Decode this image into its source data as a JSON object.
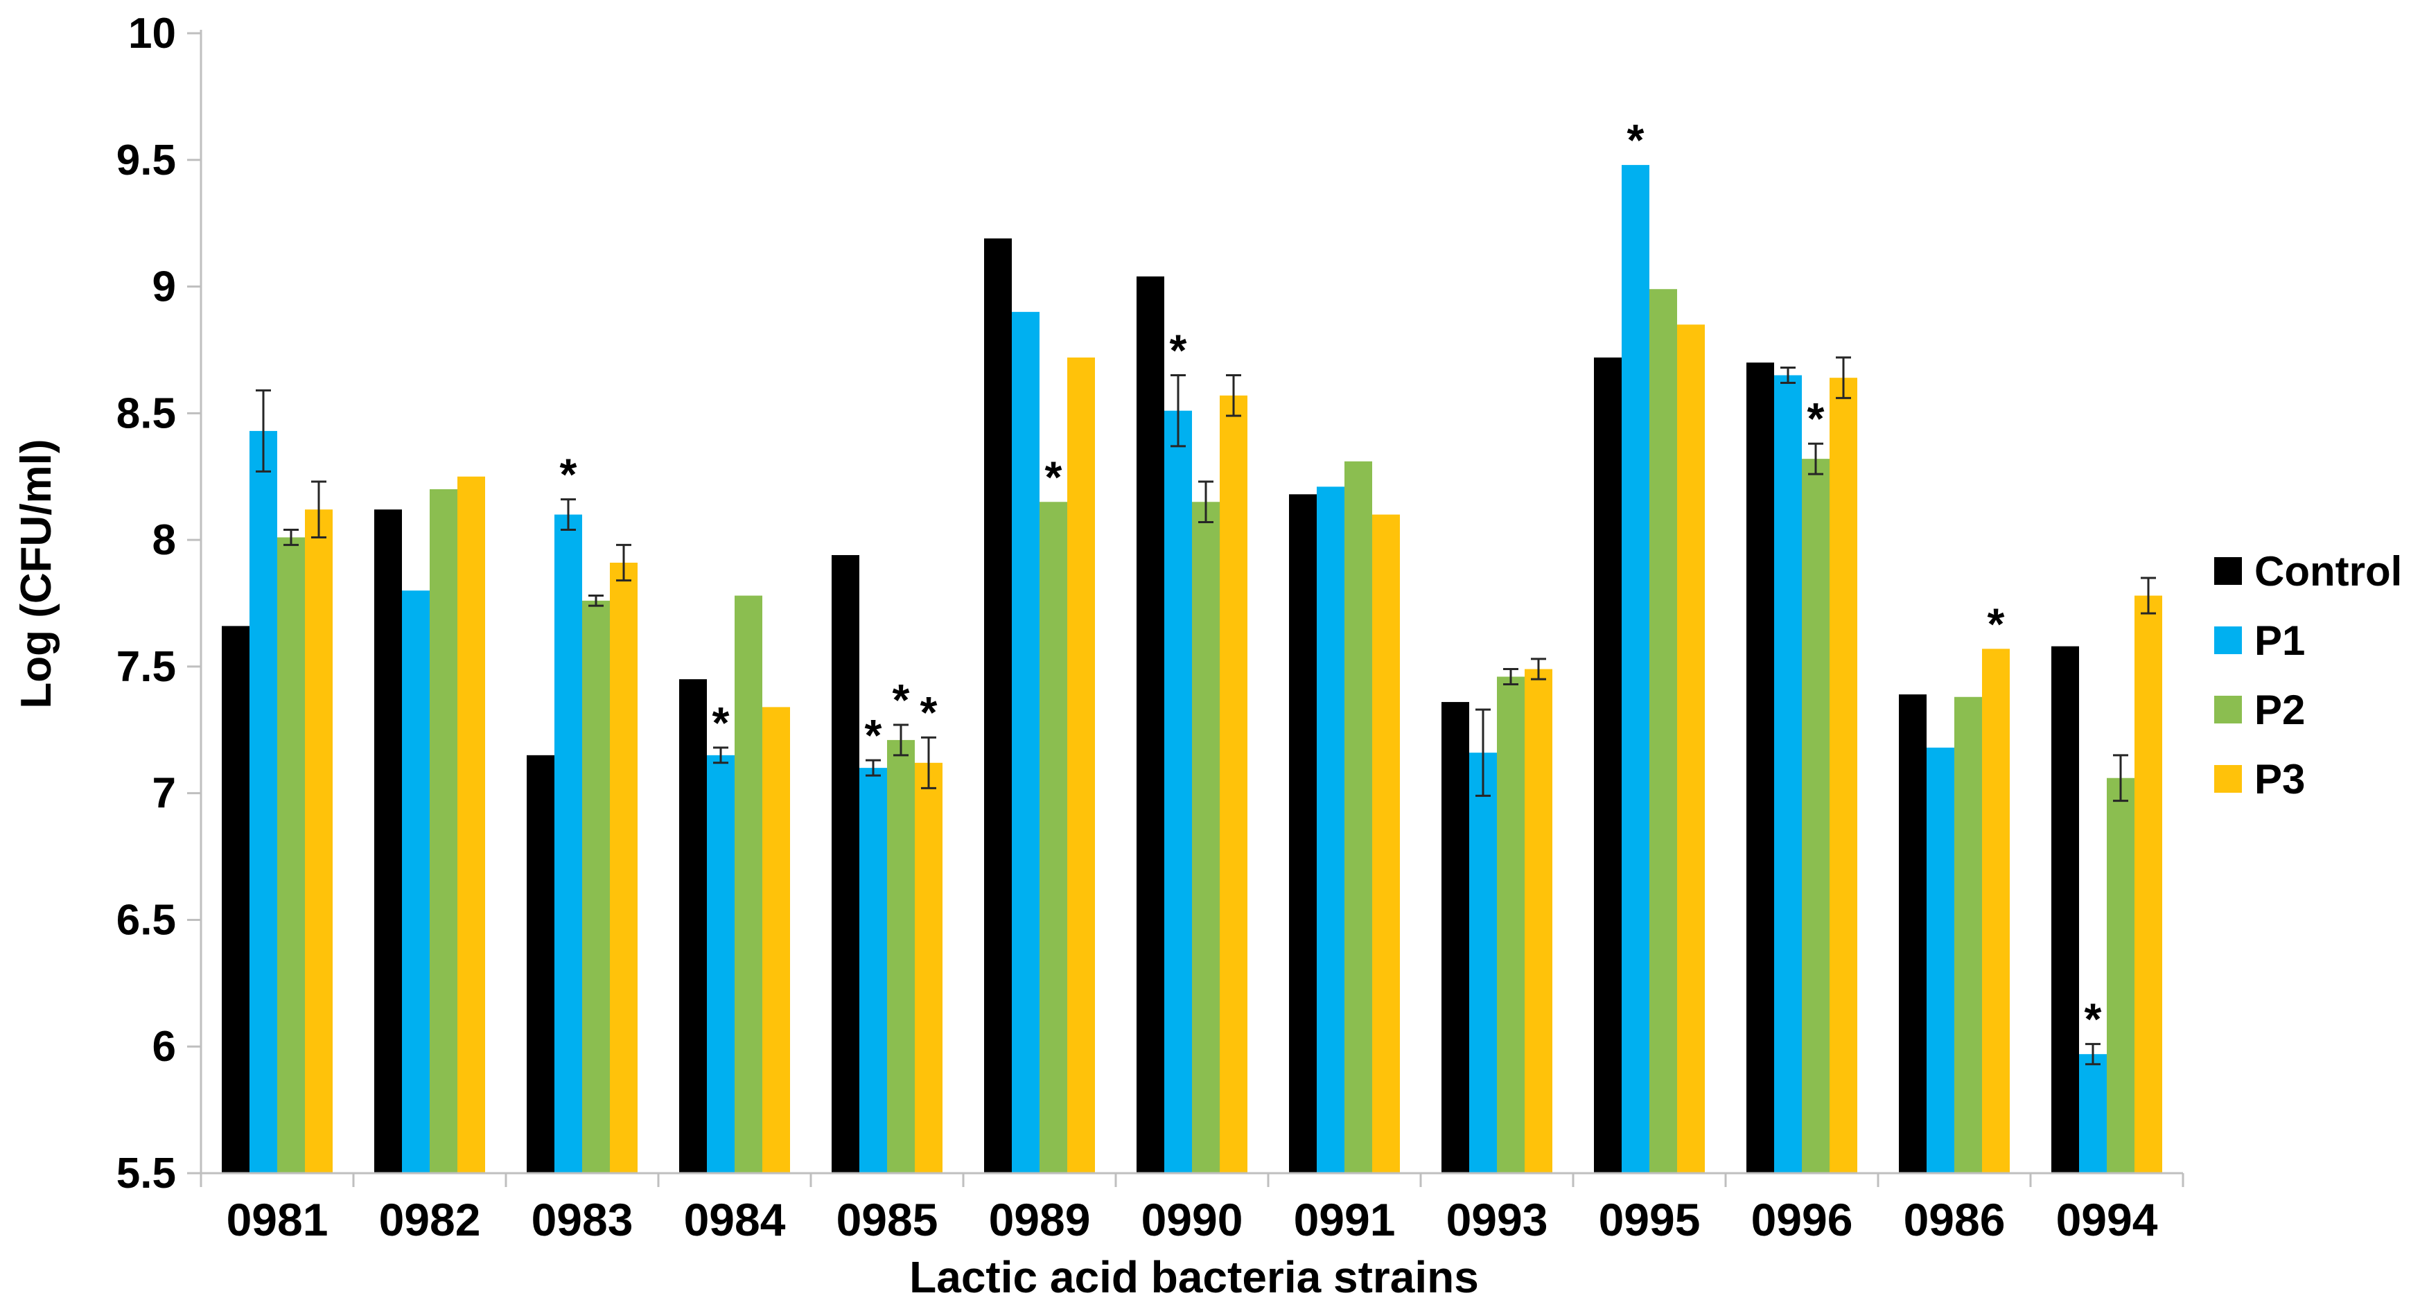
{
  "chart_data": {
    "type": "bar",
    "title": "",
    "xlabel": "Lactic acid bacteria strains",
    "ylabel": "Log (CFU/ml)",
    "ylim": [
      5.5,
      10
    ],
    "ytick_step": 0.5,
    "ytick_labels": [
      "5.5",
      "6",
      "6.5",
      "7",
      "7.5",
      "8",
      "8.5",
      "9",
      "9.5",
      "10"
    ],
    "grid": false,
    "legend_position": "right",
    "significance_marker": "*",
    "axis_color": "#BFBFBF",
    "error_bar_color": "#262626",
    "categories": [
      "0981",
      "0982",
      "0983",
      "0984",
      "0985",
      "0989",
      "0990",
      "0991",
      "0993",
      "0995",
      "0996",
      "0986",
      "0994"
    ],
    "series": [
      {
        "name": "Control",
        "color": "#000000",
        "values": [
          7.66,
          8.12,
          7.15,
          7.45,
          7.94,
          9.19,
          9.04,
          8.18,
          7.36,
          8.72,
          8.7,
          7.39,
          7.58
        ],
        "errors": [
          0,
          0,
          0,
          0,
          0,
          0,
          0,
          0,
          0,
          0,
          0,
          0,
          0
        ],
        "significant": [
          false,
          false,
          false,
          false,
          false,
          false,
          false,
          false,
          false,
          false,
          false,
          false,
          false
        ]
      },
      {
        "name": "P1",
        "color": "#00B0F0",
        "values": [
          8.43,
          7.8,
          8.1,
          7.15,
          7.1,
          8.9,
          8.51,
          8.21,
          7.16,
          9.48,
          8.65,
          7.18,
          5.97
        ],
        "errors": [
          0.16,
          0,
          0.06,
          0.03,
          0.03,
          0,
          0.14,
          0,
          0.17,
          0,
          0.03,
          0,
          0.04
        ],
        "significant": [
          false,
          false,
          true,
          true,
          true,
          false,
          true,
          false,
          false,
          true,
          false,
          false,
          true
        ]
      },
      {
        "name": "P2",
        "color": "#8BBE50",
        "values": [
          8.01,
          8.2,
          7.76,
          7.78,
          7.21,
          8.15,
          8.15,
          8.31,
          7.46,
          8.99,
          8.32,
          7.38,
          7.06
        ],
        "errors": [
          0.03,
          0,
          0.02,
          0,
          0.06,
          0,
          0.08,
          0,
          0.03,
          0,
          0.06,
          0,
          0.09
        ],
        "significant": [
          false,
          false,
          false,
          false,
          true,
          true,
          false,
          false,
          false,
          false,
          true,
          false,
          false
        ]
      },
      {
        "name": "P3",
        "color": "#FFC20A",
        "values": [
          8.12,
          8.25,
          7.91,
          7.34,
          7.12,
          8.72,
          8.57,
          8.1,
          7.49,
          8.85,
          8.64,
          7.57,
          7.78
        ],
        "errors": [
          0.11,
          0,
          0.07,
          0,
          0.1,
          0,
          0.08,
          0,
          0.04,
          0,
          0.08,
          0,
          0.07
        ],
        "significant": [
          false,
          false,
          false,
          false,
          true,
          false,
          false,
          false,
          false,
          false,
          false,
          true,
          false
        ]
      }
    ]
  }
}
